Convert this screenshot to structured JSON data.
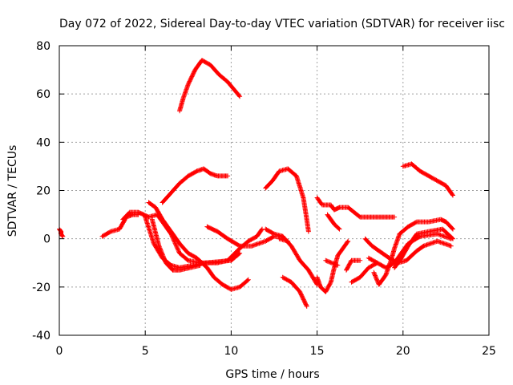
{
  "chart_data": {
    "type": "scatter",
    "title": "Day 072 of 2022, Sidereal Day-to-day VTEC variation (SDTVAR) for receiver iisc",
    "xlabel": "GPS time / hours",
    "ylabel": "SDTVAR / TECUs",
    "xlim": [
      0,
      25
    ],
    "ylim": [
      -40,
      80
    ],
    "xticks": [
      0,
      5,
      10,
      15,
      20,
      25
    ],
    "yticks": [
      -40,
      -20,
      0,
      20,
      40,
      60,
      80
    ],
    "grid": true,
    "legend": "none",
    "marker": "+",
    "color": "#ff0000",
    "tracks": [
      [
        [
          0.0,
          4
        ],
        [
          0.1,
          3
        ],
        [
          0.1,
          2
        ],
        [
          0.2,
          1
        ]
      ],
      [
        [
          2.5,
          1
        ],
        [
          3.0,
          3
        ],
        [
          3.5,
          4
        ],
        [
          3.9,
          9
        ],
        [
          4.3,
          10
        ],
        [
          4.6,
          10
        ]
      ],
      [
        [
          3.7,
          8
        ],
        [
          4.1,
          11
        ],
        [
          4.6,
          11
        ],
        [
          5.2,
          9
        ],
        [
          5.7,
          10
        ],
        [
          6.5,
          2
        ],
        [
          7.0,
          -6
        ],
        [
          7.5,
          -9
        ],
        [
          8.2,
          -10
        ],
        [
          9.2,
          -10
        ],
        [
          9.8,
          -9
        ],
        [
          10.5,
          -4
        ],
        [
          11.0,
          -1
        ],
        [
          11.5,
          1
        ],
        [
          11.8,
          4
        ]
      ],
      [
        [
          5.0,
          9
        ],
        [
          5.5,
          -2
        ],
        [
          6.0,
          -8
        ],
        [
          6.5,
          -11
        ],
        [
          7.0,
          -12
        ],
        [
          8.5,
          -10
        ],
        [
          10.0,
          -9
        ],
        [
          10.5,
          -6
        ]
      ],
      [
        [
          5.2,
          15
        ],
        [
          5.6,
          13
        ],
        [
          6.0,
          8
        ],
        [
          6.5,
          3
        ],
        [
          7.0,
          -2
        ],
        [
          7.5,
          -6
        ],
        [
          8.0,
          -8
        ],
        [
          8.6,
          -12
        ],
        [
          9.0,
          -16
        ],
        [
          9.5,
          -19
        ],
        [
          10.0,
          -21
        ],
        [
          10.5,
          -20
        ],
        [
          11.0,
          -17
        ]
      ],
      [
        [
          5.4,
          8
        ],
        [
          5.8,
          -3
        ],
        [
          6.2,
          -10
        ],
        [
          6.6,
          -13
        ],
        [
          7.0,
          -13
        ],
        [
          7.6,
          -12
        ],
        [
          8.2,
          -11
        ]
      ],
      [
        [
          6.0,
          15
        ],
        [
          6.5,
          19
        ],
        [
          7.0,
          23
        ],
        [
          7.5,
          26
        ],
        [
          8.0,
          28
        ],
        [
          8.4,
          29
        ],
        [
          8.8,
          27
        ],
        [
          9.2,
          26
        ],
        [
          9.8,
          26
        ]
      ],
      [
        [
          7.0,
          53
        ],
        [
          7.2,
          58
        ],
        [
          7.5,
          64
        ],
        [
          7.9,
          70
        ],
        [
          8.3,
          74
        ],
        [
          8.8,
          72
        ],
        [
          9.3,
          68
        ],
        [
          9.8,
          65
        ],
        [
          10.5,
          59
        ]
      ],
      [
        [
          8.6,
          5
        ],
        [
          9.2,
          3
        ],
        [
          9.8,
          0
        ],
        [
          10.5,
          -3
        ],
        [
          11.2,
          -3
        ],
        [
          12.0,
          -1
        ],
        [
          12.5,
          1
        ],
        [
          13.0,
          1
        ]
      ],
      [
        [
          12.0,
          21
        ],
        [
          12.4,
          24
        ],
        [
          12.8,
          28
        ],
        [
          13.3,
          29
        ],
        [
          13.8,
          26
        ],
        [
          14.2,
          17
        ],
        [
          14.4,
          8
        ],
        [
          14.5,
          3
        ]
      ],
      [
        [
          12.0,
          4
        ],
        [
          12.5,
          2
        ],
        [
          13.0,
          1
        ],
        [
          13.5,
          -3
        ],
        [
          14.0,
          -9
        ],
        [
          14.5,
          -13
        ],
        [
          15.0,
          -19
        ]
      ],
      [
        [
          12.8,
          0
        ],
        [
          13.3,
          -1
        ]
      ],
      [
        [
          13.0,
          -16
        ],
        [
          13.5,
          -18
        ],
        [
          14.0,
          -22
        ],
        [
          14.4,
          -28
        ]
      ],
      [
        [
          15.0,
          17
        ],
        [
          15.3,
          14
        ],
        [
          15.8,
          14
        ],
        [
          16.0,
          12
        ],
        [
          16.3,
          13
        ],
        [
          16.8,
          13
        ],
        [
          17.5,
          9
        ],
        [
          18.5,
          9
        ],
        [
          19.5,
          9
        ]
      ],
      [
        [
          15.6,
          10
        ],
        [
          16.0,
          6
        ],
        [
          16.3,
          4
        ]
      ],
      [
        [
          15.0,
          -16
        ],
        [
          15.2,
          -20
        ],
        [
          15.5,
          -22
        ],
        [
          15.8,
          -18
        ],
        [
          16.0,
          -12
        ],
        [
          16.2,
          -7
        ],
        [
          16.5,
          -4
        ],
        [
          16.8,
          -1
        ]
      ],
      [
        [
          15.5,
          -9
        ],
        [
          16.2,
          -11
        ]
      ],
      [
        [
          16.7,
          -13
        ],
        [
          17.0,
          -9
        ],
        [
          17.5,
          -9
        ]
      ],
      [
        [
          17.0,
          -18
        ],
        [
          17.5,
          -16
        ],
        [
          18.0,
          -12
        ],
        [
          18.5,
          -10
        ]
      ],
      [
        [
          17.8,
          0
        ],
        [
          18.2,
          -3
        ],
        [
          18.8,
          -6
        ],
        [
          19.2,
          -8
        ],
        [
          19.7,
          -10
        ],
        [
          20.2,
          -9
        ],
        [
          20.8,
          -5
        ],
        [
          21.2,
          -3
        ],
        [
          22.0,
          -1
        ],
        [
          22.8,
          -3
        ]
      ],
      [
        [
          18.0,
          -8
        ],
        [
          18.5,
          -10
        ],
        [
          19.0,
          -12
        ],
        [
          19.5,
          -10
        ],
        [
          19.9,
          -6
        ],
        [
          20.3,
          -2
        ],
        [
          21.0,
          1
        ],
        [
          22.0,
          2
        ],
        [
          22.8,
          0
        ]
      ],
      [
        [
          18.3,
          -14
        ],
        [
          18.6,
          -19
        ],
        [
          19.0,
          -15
        ],
        [
          19.3,
          -9
        ],
        [
          19.5,
          -4
        ],
        [
          19.8,
          2
        ],
        [
          20.3,
          5
        ],
        [
          20.8,
          7
        ],
        [
          21.5,
          7
        ],
        [
          22.2,
          8
        ],
        [
          22.5,
          7
        ],
        [
          22.9,
          4
        ]
      ],
      [
        [
          19.5,
          -12
        ],
        [
          19.9,
          -8
        ],
        [
          20.3,
          -3
        ],
        [
          20.8,
          2
        ],
        [
          21.5,
          3
        ],
        [
          22.3,
          4
        ],
        [
          22.9,
          0
        ]
      ],
      [
        [
          20.0,
          30
        ],
        [
          20.5,
          31
        ],
        [
          21.0,
          28
        ],
        [
          21.5,
          26
        ],
        [
          22.0,
          24
        ],
        [
          22.5,
          22
        ],
        [
          22.9,
          18
        ]
      ]
    ]
  }
}
